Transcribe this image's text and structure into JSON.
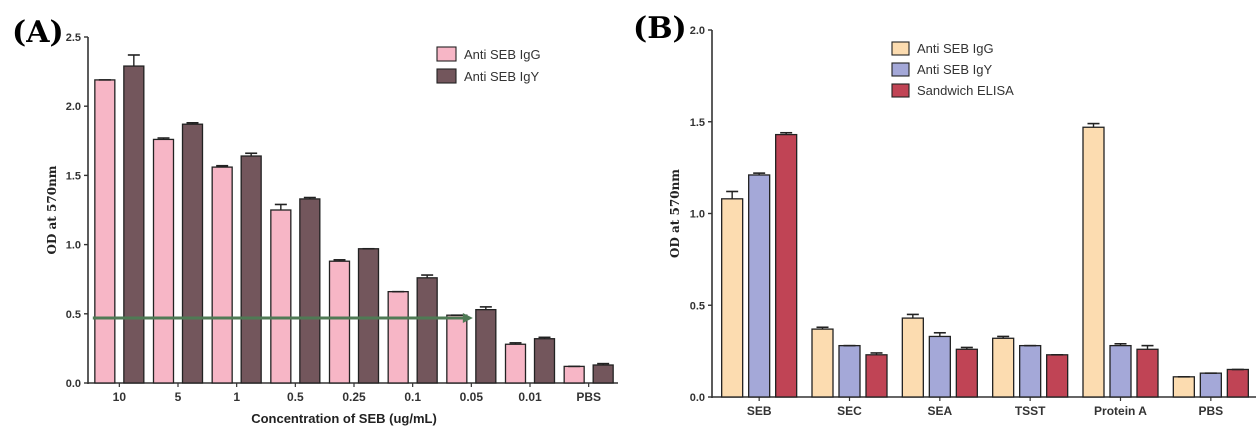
{
  "chart_data": [
    {
      "panel_label": "(A)",
      "type": "bar",
      "categories": [
        "10",
        "5",
        "1",
        "0.5",
        "0.25",
        "0.1",
        "0.05",
        "0.01",
        "PBS"
      ],
      "series": [
        {
          "name": "Anti SEB IgG",
          "color": "#f7b6c6",
          "values": [
            2.19,
            1.76,
            1.56,
            1.25,
            0.88,
            0.66,
            0.49,
            0.28,
            0.12
          ],
          "errors": [
            0.0,
            0.01,
            0.01,
            0.04,
            0.01,
            0.0,
            0.0,
            0.01,
            0.0
          ]
        },
        {
          "name": "Anti SEB IgY",
          "color": "#73565c",
          "values": [
            2.29,
            1.87,
            1.64,
            1.33,
            0.97,
            0.76,
            0.53,
            0.32,
            0.13
          ],
          "errors": [
            0.08,
            0.01,
            0.02,
            0.01,
            0.0,
            0.02,
            0.02,
            0.01,
            0.01
          ]
        }
      ],
      "xlabel": "Concentration of SEB (ug/mL)",
      "ylabel": "OD at 570nm",
      "ylim": [
        0,
        2.5
      ],
      "yticks": [
        "0.0",
        "0.5",
        "1.0",
        "1.5",
        "2.0",
        "2.5"
      ],
      "annotation": {
        "type": "arrow",
        "y_value": 0.47,
        "from_category": "10",
        "to_category": "0.05",
        "color": "#4f7a55"
      },
      "legend_position": "top-right"
    },
    {
      "panel_label": "(B)",
      "type": "bar",
      "categories": [
        "SEB",
        "SEC",
        "SEA",
        "TSST",
        "Protein A",
        "PBS"
      ],
      "series": [
        {
          "name": "Anti SEB IgG",
          "color": "#fcdcb0",
          "values": [
            1.08,
            0.37,
            0.43,
            0.32,
            1.47,
            0.11
          ],
          "errors": [
            0.04,
            0.01,
            0.02,
            0.01,
            0.02,
            0.0
          ]
        },
        {
          "name": "Anti SEB IgY",
          "color": "#a4a8d8",
          "values": [
            1.21,
            0.28,
            0.33,
            0.28,
            0.28,
            0.13
          ],
          "errors": [
            0.01,
            0.0,
            0.02,
            0.0,
            0.01,
            0.0
          ]
        },
        {
          "name": "Sandwich ELISA",
          "color": "#c04455",
          "values": [
            1.43,
            0.23,
            0.26,
            0.23,
            0.26,
            0.15
          ],
          "errors": [
            0.01,
            0.01,
            0.01,
            0.0,
            0.02,
            0.0
          ]
        }
      ],
      "xlabel": "",
      "ylabel": "OD at 570nm",
      "ylim": [
        0,
        2.0
      ],
      "yticks": [
        "0.0",
        "0.5",
        "1.0",
        "1.5",
        "2.0"
      ],
      "legend_position": "top-left"
    }
  ]
}
